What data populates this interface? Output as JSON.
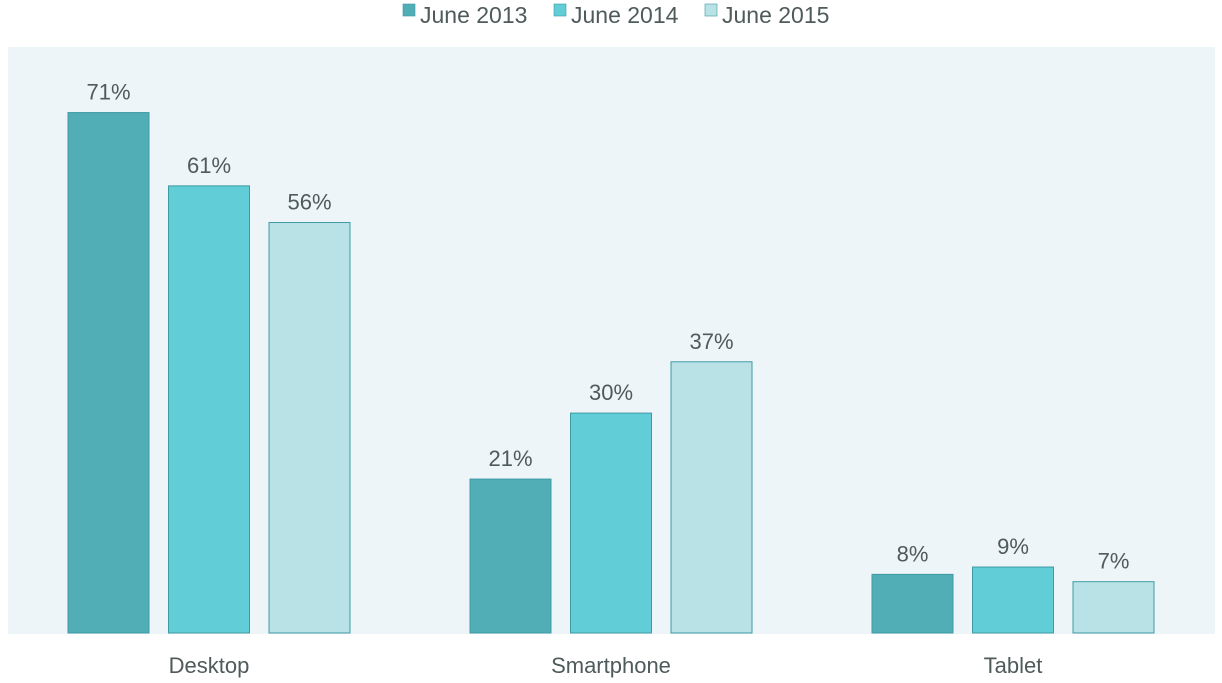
{
  "chart_data": {
    "type": "bar",
    "categories": [
      "Desktop",
      "Smartphone",
      "Tablet"
    ],
    "series": [
      {
        "name": "June 2013",
        "values": [
          71,
          21,
          8
        ],
        "labels": [
          "71%",
          "21%",
          "8%"
        ]
      },
      {
        "name": "June 2014",
        "values": [
          61,
          30,
          9
        ],
        "labels": [
          "61%",
          "30%",
          "9%"
        ]
      },
      {
        "name": "June 2015",
        "values": [
          56,
          37,
          7
        ],
        "labels": [
          "56%",
          "37%",
          "7%"
        ]
      }
    ],
    "ylim": [
      0,
      75
    ],
    "grid": false,
    "legend_position": "top",
    "title": "",
    "xlabel": "",
    "ylabel": ""
  },
  "colors": {
    "plot_background": "#edf5f8",
    "series": [
      "#51aeb7",
      "#60cdd7",
      "#b9e2e6"
    ],
    "bar_border": "#3f9aa4",
    "text": "#4f5a5a"
  }
}
